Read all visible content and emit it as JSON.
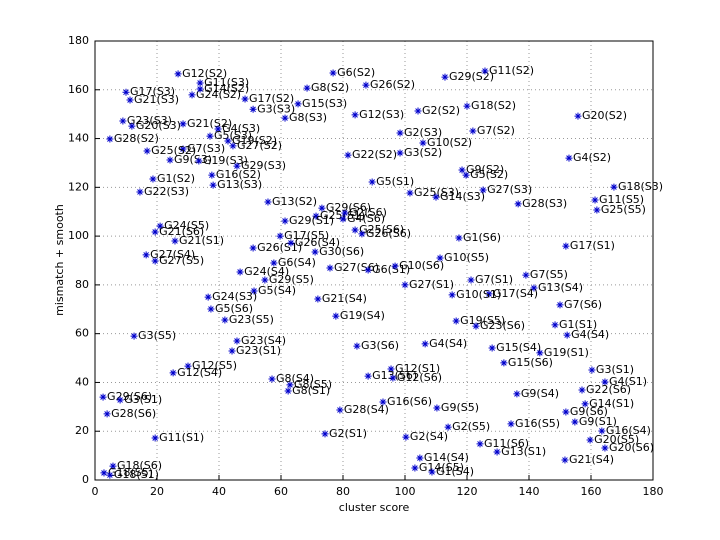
{
  "chart_data": {
    "type": "scatter",
    "xlabel": "cluster score",
    "ylabel": "mismatch + smooth",
    "color": "#0000cc",
    "grid": true,
    "xlim": [
      0,
      180
    ],
    "ylim": [
      0,
      180
    ],
    "xticks": [
      0,
      20,
      40,
      60,
      80,
      100,
      120,
      140,
      160,
      180
    ],
    "yticks": [
      0,
      20,
      40,
      60,
      80,
      100,
      120,
      140,
      160,
      180
    ],
    "labels": [
      "G12(S2)",
      "G11(S3)",
      "G17(S3)",
      "G24(S2)",
      "G14(S2)",
      "G21(S3)",
      "G17(S2)",
      "G3(S3)",
      "G8(S2)",
      "G6(S2)",
      "G26(S2)",
      "G15(S3)",
      "G12(S3)",
      "G8(S3)",
      "G2(S2)",
      "G29(S2)",
      "G11(S2)",
      "G18(S2)",
      "G20(S2)",
      "G7(S2)",
      "G2(S3)",
      "G10(S2)",
      "G3(S2)",
      "G22(S2)",
      "G4(S2)",
      "G23(S3)",
      "G20(S3)",
      "G21(S2)",
      "G4(S3)",
      "G28(S2)",
      "G5(S3)",
      "G19(S2)",
      "G27(S2)",
      "G7(S3)",
      "G25(S2)",
      "G9(S3)",
      "G19(S3)",
      "G29(S3)",
      "G16(S2)",
      "G1(S2)",
      "G13(S3)",
      "G22(S3)",
      "G5(S1)",
      "G25(S3)",
      "G14(S3)",
      "G9(S2)",
      "G5(S2)",
      "G27(S3)",
      "G28(S3)",
      "G18(S3)",
      "G11(S5)",
      "G25(S5)",
      "G13(S2)",
      "G29(S6)",
      "G25(S1)",
      "G2(S6)",
      "G4(S6)",
      "G29(S1)",
      "G25(S6)",
      "G26(S6)",
      "G24(S5)",
      "G21(S6)",
      "G21(S1)",
      "G17(S5)",
      "G26(S1)",
      "G26(S4)",
      "G30(S6)",
      "G1(S6)",
      "G17(S1)",
      "G10(S5)",
      "G27(S4)",
      "G27(S5)",
      "G6(S4)",
      "G27(S6)",
      "G6(S1)",
      "G10(S6)",
      "G24(S4)",
      "G29(S5)",
      "G5(S4)",
      "G27(S1)",
      "G7(S1)",
      "G7(S5)",
      "G13(S4)",
      "G17(S4)",
      "G10(S1)",
      "G21(S4)",
      "G24(S3)",
      "G5(S6)",
      "G23(S5)",
      "G19(S4)",
      "G7(S6)",
      "G19(S5)",
      "G23(S6)",
      "G1(S1)",
      "G4(S4)",
      "G3(S5)",
      "G23(S4)",
      "G23(S1)",
      "G4(S4)",
      "G3(S6)",
      "G15(S4)",
      "G19(S1)",
      "G12(S5)",
      "G12(S4)",
      "G12(S1)",
      "G13(S6)",
      "G12(S6)",
      "G15(S6)",
      "G3(S1)",
      "G4(S1)",
      "G8(S4)",
      "G8(S5)",
      "G8(S1)",
      "G22(S6)",
      "G9(S4)",
      "G14(S1)",
      "G29(S6)",
      "G3(S1)",
      "G28(S6)",
      "G28(S4)",
      "G16(S6)",
      "G9(S5)",
      "G9(S6)",
      "G9(S1)",
      "G16(S4)",
      "G16(S5)",
      "G2(S5)",
      "G2(S4)",
      "G2(S1)",
      "G11(S1)",
      "G11(S6)",
      "G20(S5)",
      "G20(S6)",
      "G13(S1)",
      "G21(S4)",
      "G14(S4)",
      "G14(S5)",
      "G1(S4)",
      "G18(S6)",
      "G18(S5)",
      "G18(S1)"
    ],
    "x": [
      26.8,
      33.9,
      10,
      31.3,
      33.9,
      11.3,
      48.4,
      51,
      68.4,
      76.8,
      87.4,
      65.5,
      83.9,
      61.3,
      104.2,
      112.9,
      125.8,
      120,
      155.8,
      121.9,
      98.4,
      105.8,
      98.4,
      81.6,
      152.9,
      9,
      11.9,
      28.4,
      39.7,
      4.8,
      37.1,
      42.9,
      44.5,
      28.4,
      16.8,
      24.2,
      33.5,
      45.8,
      37.7,
      18.7,
      38.1,
      14.5,
      89.4,
      101.6,
      110,
      118.4,
      119.7,
      125.2,
      136.5,
      167.4,
      161.3,
      161.9,
      55.8,
      73.2,
      71.3,
      80.6,
      80,
      61.3,
      83.9,
      86.1,
      21,
      19.4,
      25.8,
      59.7,
      51,
      63.2,
      71,
      117.4,
      151.9,
      111.3,
      16.5,
      19.4,
      57.7,
      75.8,
      88.1,
      96.8,
      46.8,
      54.8,
      51.3,
      100,
      121.3,
      139,
      141.6,
      127.1,
      115.2,
      71.9,
      36.5,
      37.4,
      41.9,
      77.7,
      150,
      116.5,
      122.9,
      148.4,
      152.3,
      12.6,
      45.8,
      44.2,
      106.5,
      84.5,
      128.1,
      143.5,
      30,
      25.2,
      95.5,
      88.1,
      96.1,
      131.9,
      160.3,
      164.5,
      57.1,
      62.9,
      62.3,
      157.1,
      136.1,
      158.1,
      2.6,
      8.1,
      3.9,
      79,
      92.9,
      110.3,
      151.9,
      154.8,
      163.5,
      134.2,
      113.9,
      100.3,
      74.2,
      19.4,
      124.2,
      159.7,
      164.5,
      129.7,
      151.6,
      104.8,
      103.2,
      108.7,
      5.8,
      2.9,
      4.8
    ],
    "y": [
      166.5,
      162.8,
      159,
      157.9,
      160.3,
      155.8,
      156.2,
      152,
      160.7,
      166.9,
      161.9,
      154.2,
      149.7,
      148.4,
      151.3,
      165.2,
      167.7,
      153.3,
      149.2,
      143.1,
      142.3,
      138.2,
      134.1,
      133.2,
      132,
      147.2,
      145.1,
      146,
      143.9,
      139.8,
      141,
      139,
      137,
      135.7,
      134.9,
      131.2,
      130.8,
      128.7,
      125,
      123.4,
      120.9,
      118.1,
      122.2,
      117.7,
      116,
      127.1,
      125,
      118.9,
      113.2,
      120.1,
      114.8,
      110.7,
      114,
      111.5,
      108.2,
      109.5,
      107,
      106.2,
      102.5,
      100.9,
      104.1,
      101.7,
      98,
      100,
      95.1,
      97.2,
      93.5,
      99.2,
      95.9,
      91,
      92.3,
      89.8,
      89,
      86.9,
      86.1,
      87.7,
      85.3,
      82,
      77.5,
      80,
      82,
      84,
      78.7,
      76.3,
      75.9,
      74.2,
      75,
      70.1,
      65.6,
      67.2,
      71.8,
      65.2,
      63.1,
      63.6,
      59.4,
      59,
      57,
      52.9,
      55.8,
      54.9,
      54.1,
      52.1,
      46.7,
      43.9,
      45.5,
      42.6,
      41.8,
      48,
      45.1,
      40.2,
      41.4,
      39,
      36.5,
      36.9,
      35.3,
      31.2,
      34,
      32.8,
      27.1,
      28.7,
      32,
      29.5,
      27.9,
      23.8,
      20.1,
      23,
      21.7,
      17.6,
      18.9,
      17.2,
      14.8,
      16.4,
      13.1,
      11.5,
      8.2,
      9,
      4.9,
      3.3,
      5.7,
      2.9,
      2
    ]
  }
}
